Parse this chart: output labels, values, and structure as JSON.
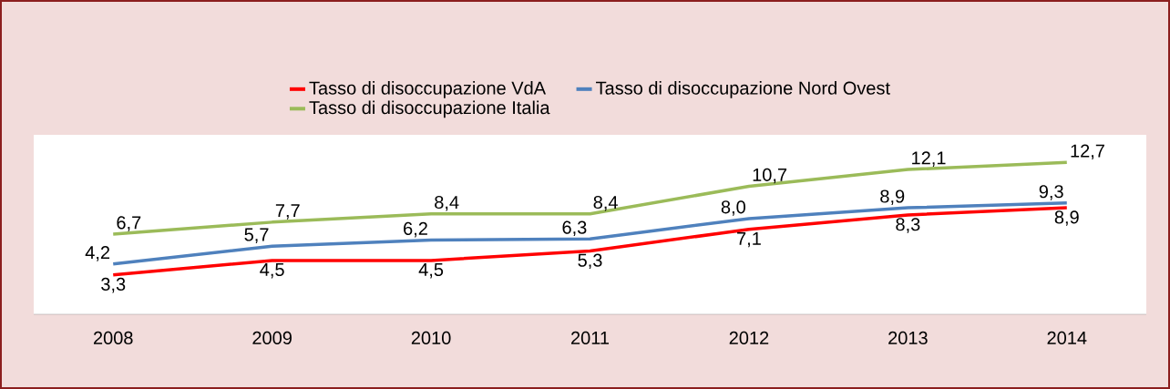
{
  "chart_data": {
    "type": "line",
    "categories": [
      "2008",
      "2009",
      "2010",
      "2011",
      "2012",
      "2013",
      "2014"
    ],
    "series": [
      {
        "name": "Tasso di disoccupazione VdA",
        "color": "#ff0000",
        "values": [
          3.3,
          4.5,
          4.5,
          5.3,
          7.1,
          8.3,
          8.9
        ],
        "value_labels": [
          "3,3",
          "4,5",
          "4,5",
          "5,3",
          "7,1",
          "8,3",
          "8,9"
        ]
      },
      {
        "name": "Tasso di disoccupazione Nord Ovest",
        "color": "#4f81bd",
        "values": [
          4.2,
          5.7,
          6.2,
          6.3,
          8.0,
          8.9,
          9.3
        ],
        "value_labels": [
          "4,2",
          "5,7",
          "6,2",
          "6,3",
          "8,0",
          "8,9",
          "9,3"
        ]
      },
      {
        "name": "Tasso di disoccupazione Italia",
        "color": "#9bbb59",
        "values": [
          6.7,
          7.7,
          8.4,
          8.4,
          10.7,
          12.1,
          12.7
        ],
        "value_labels": [
          "6,7",
          "7,7",
          "8,4",
          "8,4",
          "10,7",
          "12,1",
          "12,7"
        ]
      }
    ],
    "ylim": [
      0,
      15
    ],
    "legend": "top",
    "marker": "none",
    "line_style": "solid"
  }
}
